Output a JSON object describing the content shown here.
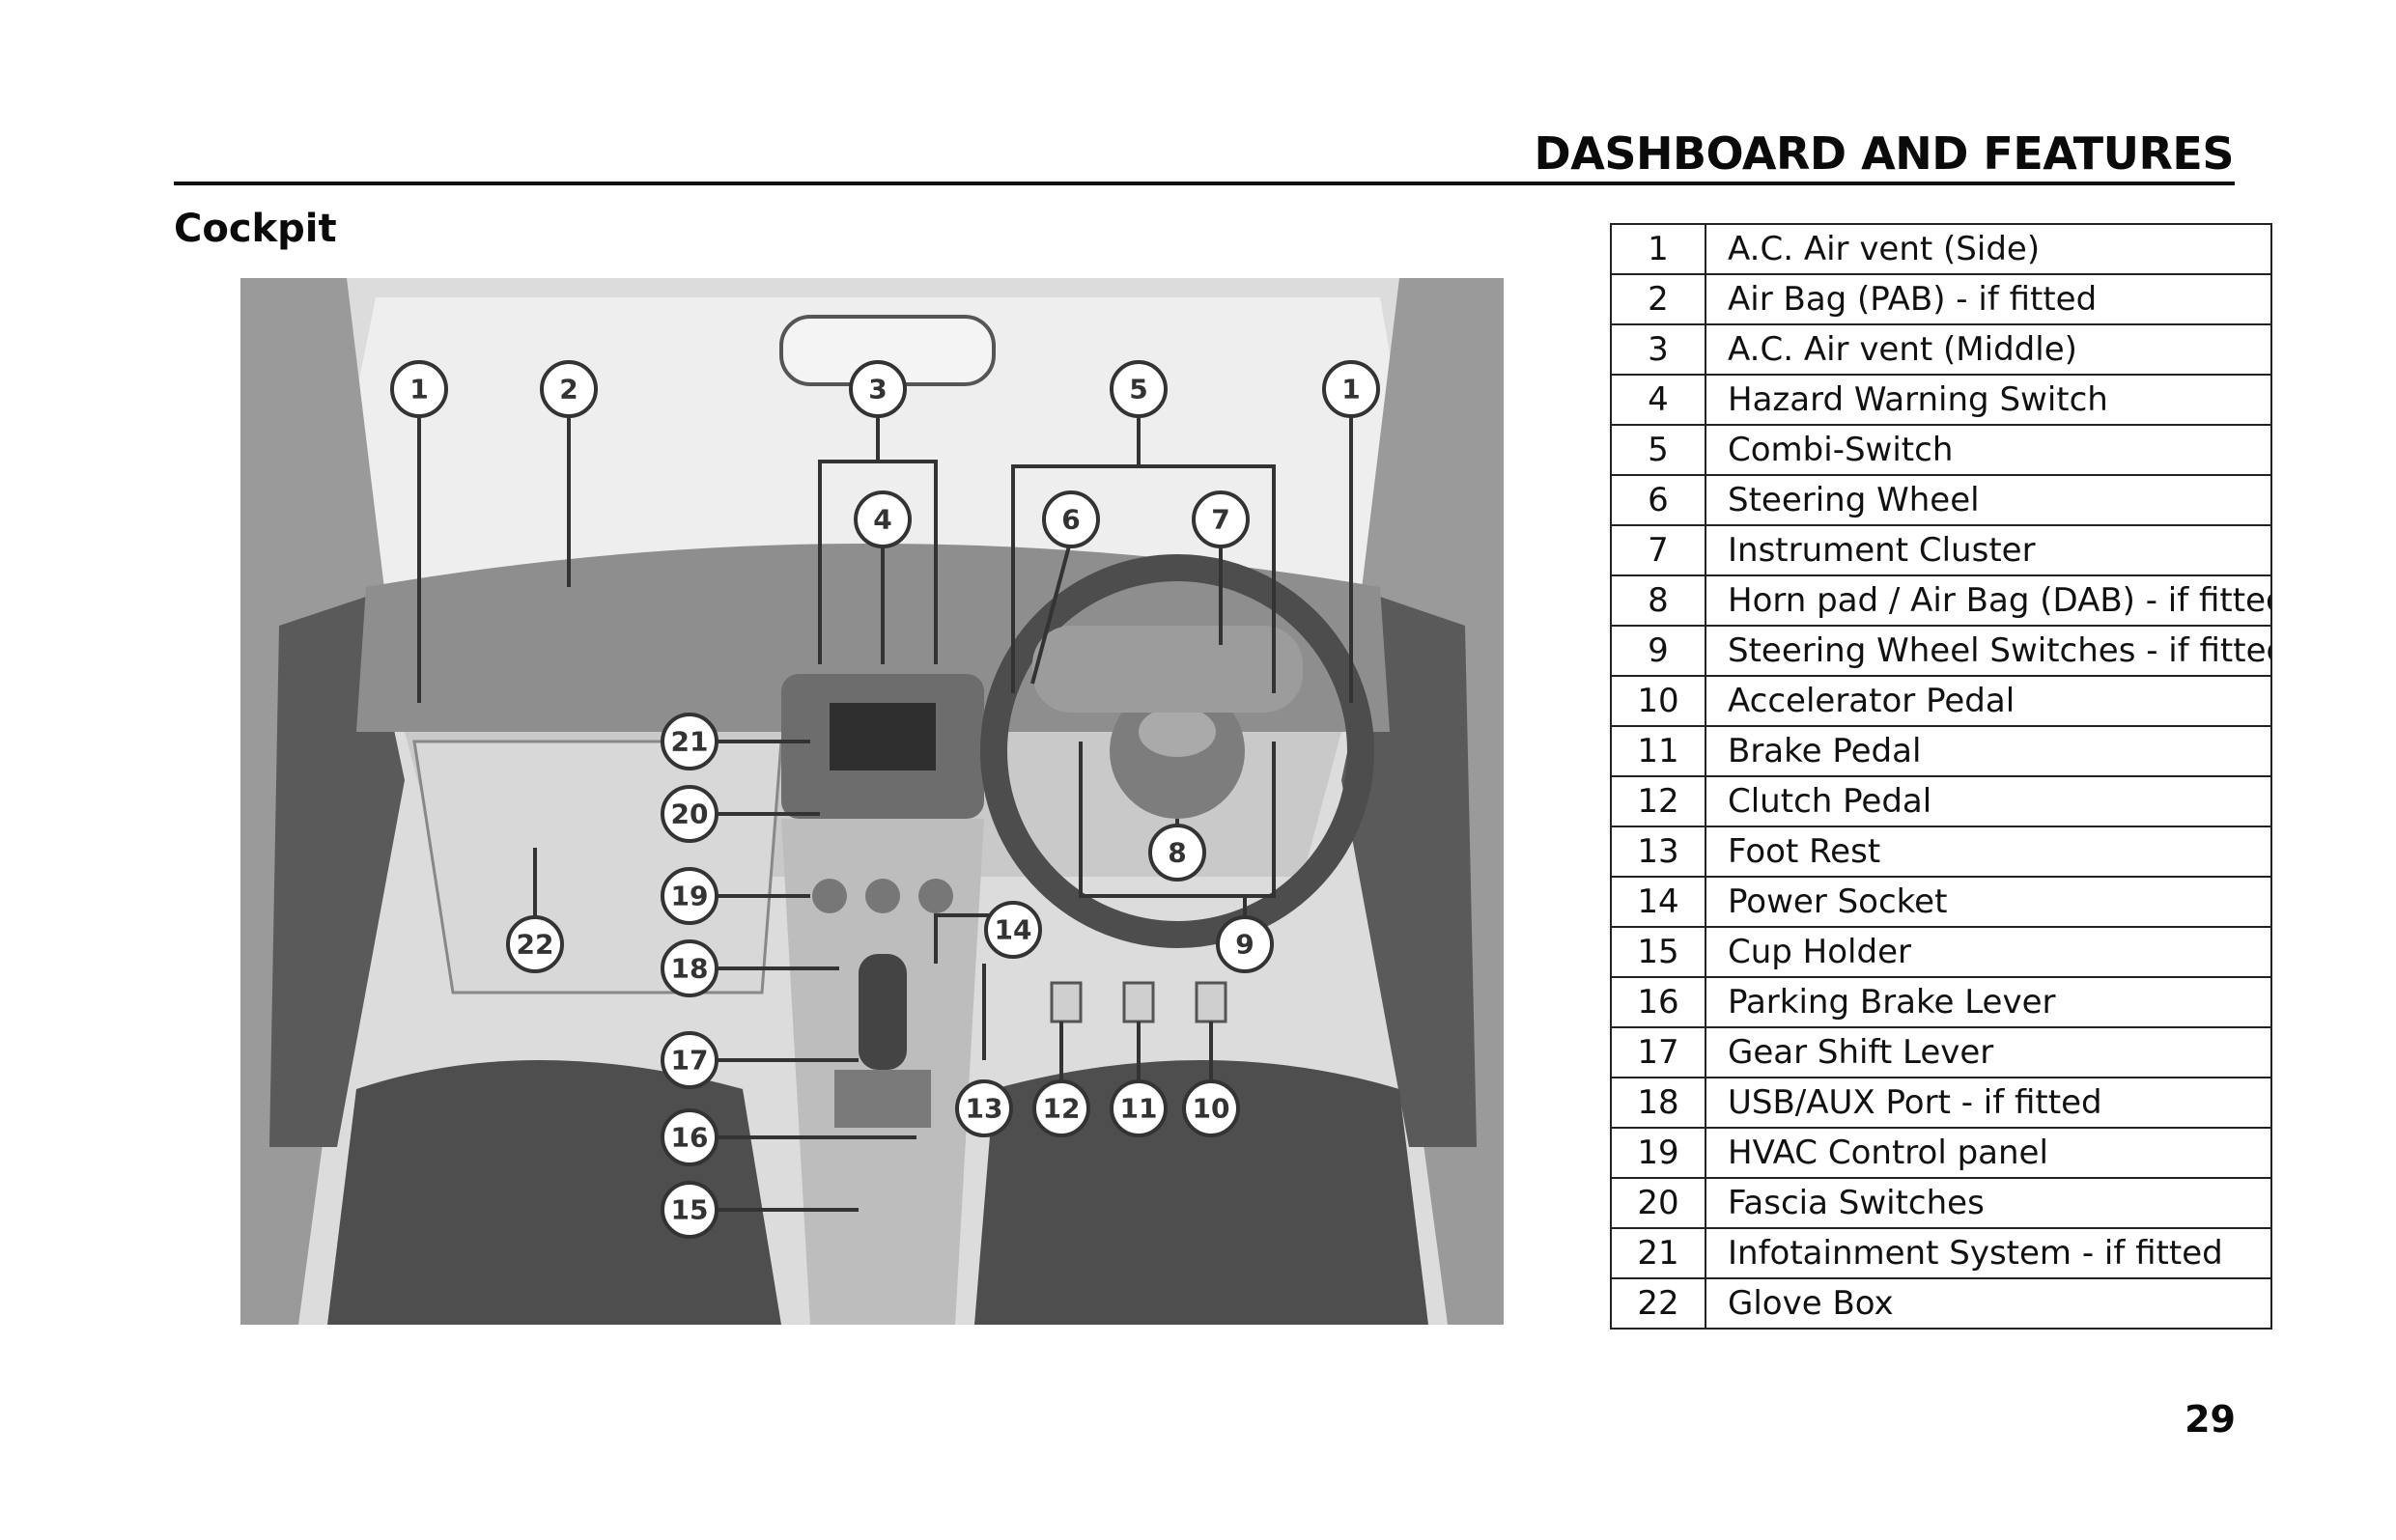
{
  "header": {
    "title": "DASHBOARD AND FEATURES"
  },
  "section": {
    "title": "Cockpit"
  },
  "figure": {
    "description_icon": "car-cockpit-illustration",
    "callouts": [
      "1",
      "2",
      "3",
      "4",
      "5",
      "6",
      "7",
      "1",
      "21",
      "20",
      "19",
      "18",
      "17",
      "16",
      "15",
      "22",
      "14",
      "13",
      "12",
      "11",
      "10",
      "8",
      "9"
    ]
  },
  "legend": [
    {
      "num": "1",
      "label": "A.C. Air vent (Side)"
    },
    {
      "num": "2",
      "label": "Air Bag (PAB) - if fitted"
    },
    {
      "num": "3",
      "label": "A.C. Air vent (Middle)"
    },
    {
      "num": "4",
      "label": "Hazard Warning Switch"
    },
    {
      "num": "5",
      "label": "Combi-Switch"
    },
    {
      "num": "6",
      "label": "Steering Wheel"
    },
    {
      "num": "7",
      "label": "Instrument Cluster"
    },
    {
      "num": "8",
      "label": "Horn pad / Air Bag (DAB) - if fitted"
    },
    {
      "num": "9",
      "label": "Steering Wheel Switches - if fitted"
    },
    {
      "num": "10",
      "label": "Accelerator Pedal"
    },
    {
      "num": "11",
      "label": "Brake Pedal"
    },
    {
      "num": "12",
      "label": "Clutch Pedal"
    },
    {
      "num": "13",
      "label": "Foot Rest"
    },
    {
      "num": "14",
      "label": "Power Socket"
    },
    {
      "num": "15",
      "label": "Cup Holder"
    },
    {
      "num": "16",
      "label": "Parking Brake Lever"
    },
    {
      "num": "17",
      "label": "Gear Shift  Lever"
    },
    {
      "num": "18",
      "label": "USB/AUX Port - if fitted"
    },
    {
      "num": "19",
      "label": "HVAC Control panel"
    },
    {
      "num": "20",
      "label": "Fascia Switches"
    },
    {
      "num": "21",
      "label": "Infotainment System - if fitted"
    },
    {
      "num": "22",
      "label": "Glove Box"
    }
  ],
  "page": {
    "number": "29"
  }
}
